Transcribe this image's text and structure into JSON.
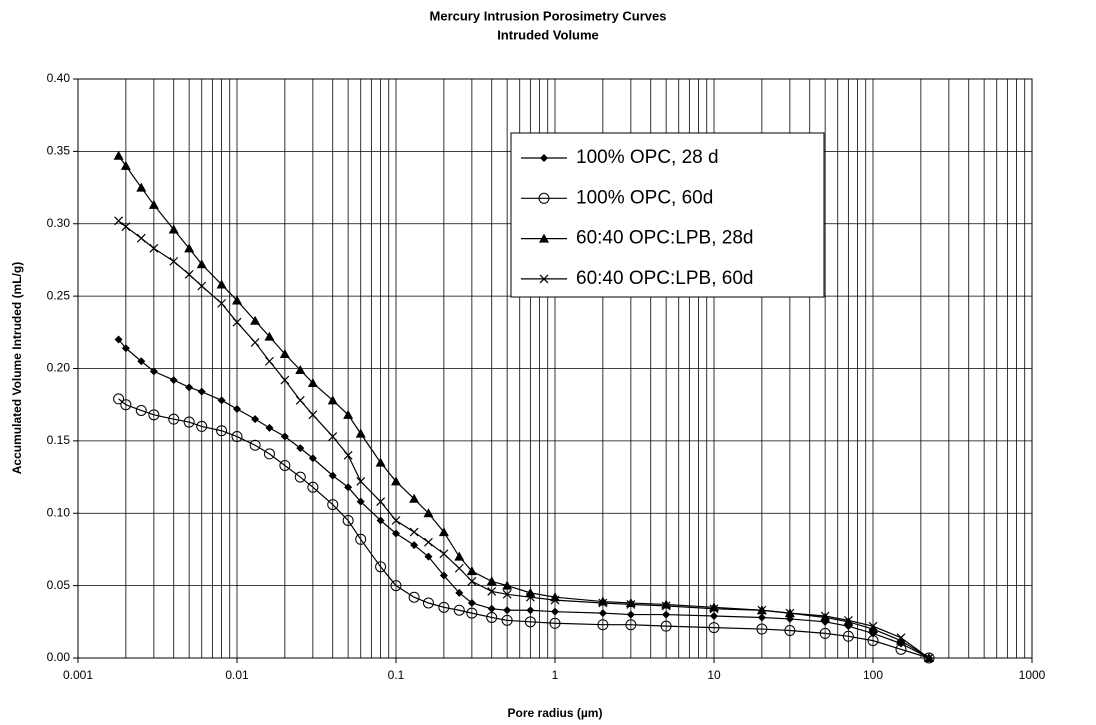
{
  "chart_data": {
    "type": "line",
    "title": "Mercury Intrusion Porosimetry Curves",
    "subtitle": "Intruded Volume",
    "x_label": "Pore radius (µm)",
    "y_label": "Accumulated Volume Intruded (mL/g)",
    "x_log": true,
    "grid": true,
    "minor_grid": true,
    "xlim": [
      0.001,
      1000
    ],
    "xticks": [
      0.001,
      0.01,
      0.1,
      1,
      10,
      100,
      1000
    ],
    "ylim": [
      0,
      0.4
    ],
    "yticks": [
      {
        "value": 0,
        "label": "0.00"
      },
      {
        "value": 0.05,
        "label": "0.05"
      },
      {
        "value": 0.1,
        "label": "0.10"
      },
      {
        "value": 0.15,
        "label": "0.15"
      },
      {
        "value": 0.2,
        "label": "0.20"
      },
      {
        "value": 0.25,
        "label": "0.25"
      },
      {
        "value": 0.3,
        "label": "0.30"
      },
      {
        "value": 0.35,
        "label": "0.35"
      },
      {
        "value": 0.4,
        "label": "0.40"
      }
    ],
    "legend": "top-center",
    "x": [
      0.0018,
      0.002,
      0.0025,
      0.003,
      0.004,
      0.005,
      0.006,
      0.008,
      0.01,
      0.013,
      0.016,
      0.02,
      0.025,
      0.03,
      0.04,
      0.05,
      0.06,
      0.08,
      0.1,
      0.13,
      0.16,
      0.2,
      0.25,
      0.3,
      0.4,
      0.5,
      0.7,
      1,
      2,
      3,
      5,
      10,
      20,
      30,
      50,
      70,
      100,
      150,
      225
    ],
    "series": [
      {
        "name": "100% OPC, 28 d",
        "color": "#000000",
        "marker": "diamond",
        "values": [
          0.22,
          0.214,
          0.205,
          0.198,
          0.192,
          0.187,
          0.184,
          0.178,
          0.172,
          0.165,
          0.159,
          0.153,
          0.145,
          0.138,
          0.126,
          0.118,
          0.108,
          0.095,
          0.086,
          0.078,
          0.07,
          0.057,
          0.045,
          0.038,
          0.034,
          0.033,
          0.033,
          0.032,
          0.031,
          0.03,
          0.03,
          0.029,
          0.028,
          0.027,
          0.025,
          0.022,
          0.017,
          0.01,
          0.0
        ]
      },
      {
        "name": "100% OPC, 60d",
        "color": "#000000",
        "marker": "circle",
        "values": [
          0.179,
          0.175,
          0.171,
          0.168,
          0.165,
          0.163,
          0.16,
          0.157,
          0.153,
          0.147,
          0.141,
          0.133,
          0.125,
          0.118,
          0.106,
          0.095,
          0.082,
          0.063,
          0.05,
          0.042,
          0.038,
          0.035,
          0.033,
          0.031,
          0.028,
          0.026,
          0.025,
          0.024,
          0.023,
          0.023,
          0.022,
          0.021,
          0.02,
          0.019,
          0.017,
          0.015,
          0.012,
          0.006,
          0.0
        ]
      },
      {
        "name": "60:40 OPC:LPB, 28d",
        "color": "#000000",
        "marker": "triangle",
        "values": [
          0.347,
          0.34,
          0.325,
          0.313,
          0.296,
          0.283,
          0.272,
          0.258,
          0.247,
          0.233,
          0.222,
          0.21,
          0.199,
          0.19,
          0.178,
          0.168,
          0.155,
          0.135,
          0.122,
          0.11,
          0.1,
          0.087,
          0.07,
          0.06,
          0.053,
          0.05,
          0.045,
          0.042,
          0.039,
          0.038,
          0.037,
          0.035,
          0.033,
          0.031,
          0.028,
          0.025,
          0.02,
          0.012,
          0.0
        ]
      },
      {
        "name": "60:40 OPC:LPB, 60d",
        "color": "#000000",
        "marker": "cross",
        "values": [
          0.302,
          0.298,
          0.29,
          0.283,
          0.274,
          0.265,
          0.257,
          0.245,
          0.232,
          0.218,
          0.205,
          0.192,
          0.178,
          0.168,
          0.153,
          0.14,
          0.122,
          0.108,
          0.095,
          0.087,
          0.08,
          0.072,
          0.062,
          0.053,
          0.046,
          0.044,
          0.042,
          0.04,
          0.038,
          0.037,
          0.036,
          0.034,
          0.033,
          0.031,
          0.029,
          0.026,
          0.022,
          0.014,
          0.0
        ]
      }
    ]
  }
}
